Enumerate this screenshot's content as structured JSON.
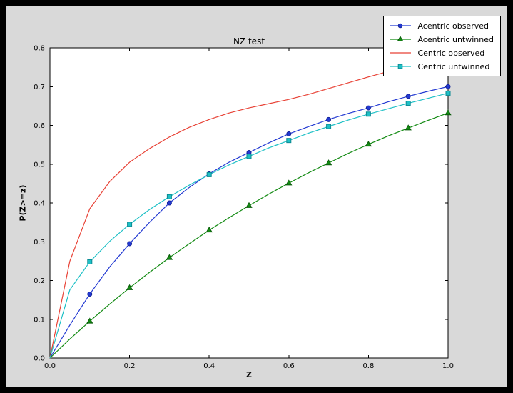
{
  "window": {
    "background": "#000000",
    "figure_background": "#d9d9d9",
    "plot_background": "#ffffff",
    "axis_color": "#000000",
    "tick_label_color": "#000000"
  },
  "chart_data": {
    "type": "line",
    "title": "NZ test",
    "xlabel": "Z",
    "ylabel": "P(Z>=z)",
    "xlim": [
      0,
      1
    ],
    "ylim": [
      0,
      0.8
    ],
    "grid": false,
    "legend_position": "upper right",
    "x_ticks": [
      0,
      0.2,
      0.4,
      0.6,
      0.8,
      1.0
    ],
    "x_tick_labels": [
      "0.0",
      "0.2",
      "0.4",
      "0.6",
      "0.8",
      "1.0"
    ],
    "y_ticks": [
      0,
      0.1,
      0.2,
      0.3,
      0.4,
      0.5,
      0.6,
      0.7,
      0.8
    ],
    "y_tick_labels": [
      "0.0",
      "0.1",
      "0.2",
      "0.3",
      "0.4",
      "0.5",
      "0.6",
      "0.7",
      "0.8"
    ],
    "x": [
      0,
      0.05,
      0.1,
      0.15,
      0.2,
      0.25,
      0.3,
      0.35,
      0.4,
      0.45,
      0.5,
      0.55,
      0.6,
      0.65,
      0.7,
      0.75,
      0.8,
      0.85,
      0.9,
      0.95,
      1.0
    ],
    "marker_every": 2,
    "series": [
      {
        "name": "Acentric observed",
        "color": "#2239d2",
        "marker": "circle",
        "marker_edge": "#16249a",
        "values": [
          0,
          0.085,
          0.165,
          0.235,
          0.295,
          0.35,
          0.4,
          0.44,
          0.475,
          0.505,
          0.53,
          0.555,
          0.578,
          0.597,
          0.615,
          0.631,
          0.645,
          0.661,
          0.675,
          0.688,
          0.7
        ]
      },
      {
        "name": "Acentric untwinned",
        "color": "#128a12",
        "marker": "triangle",
        "marker_edge": "#0a5c0a",
        "values": [
          0,
          0.049,
          0.095,
          0.139,
          0.181,
          0.221,
          0.259,
          0.295,
          0.33,
          0.362,
          0.393,
          0.423,
          0.451,
          0.478,
          0.503,
          0.528,
          0.551,
          0.573,
          0.593,
          0.613,
          0.632
        ]
      },
      {
        "name": "Centric observed",
        "color": "#e84236",
        "marker": "none",
        "marker_edge": "#a32218",
        "values": [
          0,
          0.25,
          0.385,
          0.455,
          0.505,
          0.54,
          0.57,
          0.595,
          0.615,
          0.632,
          0.645,
          0.656,
          0.667,
          0.68,
          0.695,
          0.71,
          0.725,
          0.739,
          0.752,
          0.764,
          0.775
        ]
      },
      {
        "name": "Centric untwinned",
        "color": "#1ec0c6",
        "marker": "square",
        "marker_edge": "#0c8b93",
        "values": [
          0,
          0.176,
          0.248,
          0.301,
          0.345,
          0.383,
          0.416,
          0.446,
          0.473,
          0.498,
          0.52,
          0.542,
          0.561,
          0.58,
          0.597,
          0.614,
          0.629,
          0.643,
          0.657,
          0.67,
          0.683
        ]
      }
    ]
  }
}
